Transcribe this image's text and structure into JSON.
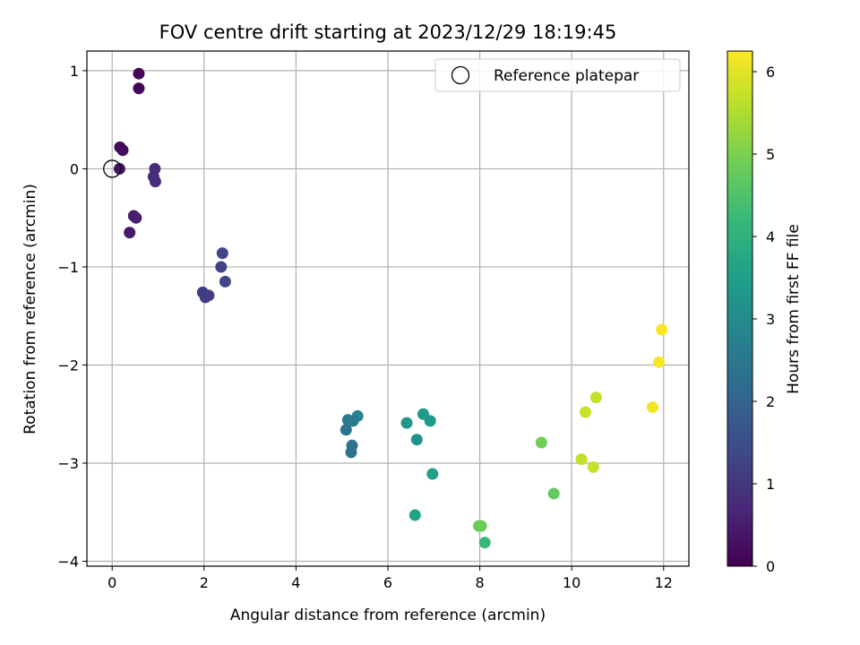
{
  "chart_data": {
    "type": "scatter",
    "title": "FOV centre drift starting at 2023/12/29 18:19:45",
    "xlabel": "Angular distance from reference (arcmin)",
    "ylabel": "Rotation from reference (arcmin)",
    "colorbar_label": "Hours from first FF file",
    "xlim": [
      -0.55,
      12.55
    ],
    "ylim": [
      -4.05,
      1.2
    ],
    "clim": [
      0,
      6.25
    ],
    "xticks": [
      0,
      2,
      4,
      6,
      8,
      10,
      12
    ],
    "yticks": [
      1,
      0,
      -1,
      -2,
      -3,
      -4
    ],
    "cticks": [
      0,
      1,
      2,
      3,
      4,
      5,
      6
    ],
    "grid": true,
    "colormap": "viridis",
    "legend": {
      "label": "Reference platepar",
      "location": "upper right"
    },
    "reference_point": {
      "x": 0,
      "y": 0
    },
    "points": [
      {
        "x": 0.58,
        "y": 0.97,
        "h": 0.05
      },
      {
        "x": 0.58,
        "y": 0.82,
        "h": 0.08
      },
      {
        "x": 0.17,
        "y": 0.22,
        "h": 0.18
      },
      {
        "x": 0.23,
        "y": 0.19,
        "h": 0.2
      },
      {
        "x": 0.16,
        "y": 0.0,
        "h": 0.28
      },
      {
        "x": 0.93,
        "y": 0.0,
        "h": 0.78
      },
      {
        "x": 0.9,
        "y": -0.08,
        "h": 0.75
      },
      {
        "x": 0.94,
        "y": -0.13,
        "h": 0.8
      },
      {
        "x": 0.47,
        "y": -0.48,
        "h": 0.5
      },
      {
        "x": 0.52,
        "y": -0.5,
        "h": 0.55
      },
      {
        "x": 0.38,
        "y": -0.65,
        "h": 0.45
      },
      {
        "x": 2.4,
        "y": -0.86,
        "h": 1.3
      },
      {
        "x": 2.37,
        "y": -1.0,
        "h": 1.27
      },
      {
        "x": 2.46,
        "y": -1.15,
        "h": 1.33
      },
      {
        "x": 1.97,
        "y": -1.26,
        "h": 1.1
      },
      {
        "x": 2.1,
        "y": -1.29,
        "h": 1.15
      },
      {
        "x": 2.03,
        "y": -1.31,
        "h": 1.12
      },
      {
        "x": 5.34,
        "y": -2.52,
        "h": 2.85
      },
      {
        "x": 5.13,
        "y": -2.56,
        "h": 2.5
      },
      {
        "x": 5.24,
        "y": -2.57,
        "h": 2.6
      },
      {
        "x": 5.09,
        "y": -2.66,
        "h": 2.4
      },
      {
        "x": 5.22,
        "y": -2.82,
        "h": 2.35
      },
      {
        "x": 5.2,
        "y": -2.89,
        "h": 2.3
      },
      {
        "x": 6.41,
        "y": -2.59,
        "h": 3.3
      },
      {
        "x": 6.77,
        "y": -2.5,
        "h": 3.35
      },
      {
        "x": 6.92,
        "y": -2.57,
        "h": 3.4
      },
      {
        "x": 6.63,
        "y": -2.76,
        "h": 3.2
      },
      {
        "x": 6.97,
        "y": -3.11,
        "h": 3.5
      },
      {
        "x": 6.59,
        "y": -3.53,
        "h": 3.6
      },
      {
        "x": 7.98,
        "y": -3.64,
        "h": 4.8
      },
      {
        "x": 8.03,
        "y": -3.64,
        "h": 4.85
      },
      {
        "x": 8.11,
        "y": -3.81,
        "h": 4.2
      },
      {
        "x": 9.34,
        "y": -2.79,
        "h": 4.9
      },
      {
        "x": 9.61,
        "y": -3.31,
        "h": 4.75
      },
      {
        "x": 10.53,
        "y": -2.33,
        "h": 5.7
      },
      {
        "x": 10.3,
        "y": -2.48,
        "h": 5.75
      },
      {
        "x": 10.21,
        "y": -2.96,
        "h": 5.72
      },
      {
        "x": 10.47,
        "y": -3.04,
        "h": 5.75
      },
      {
        "x": 11.96,
        "y": -1.64,
        "h": 6.2
      },
      {
        "x": 11.9,
        "y": -1.97,
        "h": 6.2
      },
      {
        "x": 11.76,
        "y": -2.43,
        "h": 6.15
      }
    ]
  }
}
